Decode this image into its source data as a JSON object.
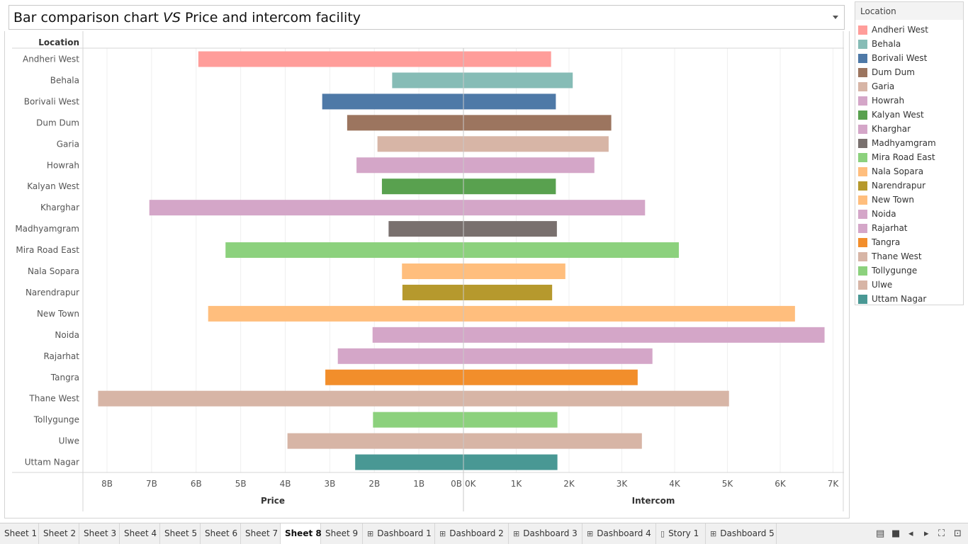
{
  "header": {
    "title_part1": "Bar comparison chart ",
    "title_vs": "VS",
    "title_part2": " Price and intercom facility"
  },
  "chart_data": {
    "type": "bar",
    "orientation": "horizontal",
    "title": "Bar comparison chart VS Price and intercom facility",
    "row_header": "Location",
    "categories": [
      "Andheri West",
      "Behala",
      "Borivali West",
      "Dum Dum",
      "Garia",
      "Howrah",
      "Kalyan West",
      "Kharghar",
      "Madhyamgram",
      "Mira Road East",
      "Nala Sopara",
      "Narendrapur",
      "New Town",
      "Noida",
      "Rajarhat",
      "Tangra",
      "Thane West",
      "Tollygunge",
      "Ulwe",
      "Uttam Nagar"
    ],
    "colors": [
      "#ff9d9a",
      "#86bcb6",
      "#4e79a7",
      "#9c755f",
      "#d7b5a6",
      "#d4a6c8",
      "#59a14f",
      "#d4a6c8",
      "#79706e",
      "#8cd17d",
      "#ffbe7d",
      "#b6992d",
      "#ffbe7d",
      "#d4a6c8",
      "#d4a6c8",
      "#f28e2b",
      "#d7b5a6",
      "#8cd17d",
      "#d7b5a6",
      "#499894"
    ],
    "series": [
      {
        "name": "Price",
        "values": [
          5.95,
          1.6,
          3.17,
          2.61,
          1.93,
          2.4,
          1.83,
          7.05,
          1.68,
          5.34,
          1.38,
          1.37,
          5.73,
          2.04,
          2.82,
          3.1,
          8.2,
          2.03,
          3.95,
          2.43
        ],
        "xlim": [
          8.5,
          0
        ],
        "ticks": [
          8,
          7,
          6,
          5,
          4,
          3,
          2,
          1,
          0
        ],
        "tick_labels": [
          "8B",
          "7B",
          "6B",
          "5B",
          "4B",
          "3B",
          "2B",
          "1B",
          "0B"
        ]
      },
      {
        "name": "Intercom",
        "values": [
          1.66,
          2.07,
          1.75,
          2.8,
          2.75,
          2.48,
          1.75,
          3.44,
          1.77,
          4.08,
          1.93,
          1.68,
          6.28,
          6.84,
          3.58,
          3.3,
          5.03,
          1.78,
          3.38,
          1.78
        ],
        "xlim": [
          0,
          7
        ],
        "ticks": [
          0,
          1,
          2,
          3,
          4,
          5,
          6,
          7
        ],
        "tick_labels": [
          "0K",
          "1K",
          "2K",
          "3K",
          "4K",
          "5K",
          "6K",
          "7K"
        ]
      }
    ],
    "grid": true
  },
  "legend": {
    "title": "Location",
    "items": [
      {
        "label": "Andheri West",
        "color": "#ff9d9a"
      },
      {
        "label": "Behala",
        "color": "#86bcb6"
      },
      {
        "label": "Borivali West",
        "color": "#4e79a7"
      },
      {
        "label": "Dum Dum",
        "color": "#9c755f"
      },
      {
        "label": "Garia",
        "color": "#d7b5a6"
      },
      {
        "label": "Howrah",
        "color": "#d4a6c8"
      },
      {
        "label": "Kalyan West",
        "color": "#59a14f"
      },
      {
        "label": "Kharghar",
        "color": "#d4a6c8"
      },
      {
        "label": "Madhyamgram",
        "color": "#79706e"
      },
      {
        "label": "Mira Road East",
        "color": "#8cd17d"
      },
      {
        "label": "Nala Sopara",
        "color": "#ffbe7d"
      },
      {
        "label": "Narendrapur",
        "color": "#b6992d"
      },
      {
        "label": "New Town",
        "color": "#ffbe7d"
      },
      {
        "label": "Noida",
        "color": "#d4a6c8"
      },
      {
        "label": "Rajarhat",
        "color": "#d4a6c8"
      },
      {
        "label": "Tangra",
        "color": "#f28e2b"
      },
      {
        "label": "Thane West",
        "color": "#d7b5a6"
      },
      {
        "label": "Tollygunge",
        "color": "#8cd17d"
      },
      {
        "label": "Ulwe",
        "color": "#d7b5a6"
      },
      {
        "label": "Uttam Nagar",
        "color": "#499894"
      }
    ]
  },
  "tabs": [
    {
      "label": "Sheet 1",
      "icon": ""
    },
    {
      "label": "Sheet 2",
      "icon": ""
    },
    {
      "label": "Sheet 3",
      "icon": ""
    },
    {
      "label": "Sheet 4",
      "icon": ""
    },
    {
      "label": "Sheet 5",
      "icon": ""
    },
    {
      "label": "Sheet 6",
      "icon": ""
    },
    {
      "label": "Sheet 7",
      "icon": ""
    },
    {
      "label": "Sheet 8",
      "icon": "",
      "active": true
    },
    {
      "label": "Sheet 9",
      "icon": ""
    },
    {
      "label": "Dashboard 1",
      "icon": "dashboard-icon"
    },
    {
      "label": "Dashboard 2",
      "icon": "dashboard-icon"
    },
    {
      "label": "Dashboard 3",
      "icon": "dashboard-icon"
    },
    {
      "label": "Dashboard 4",
      "icon": "dashboard-icon"
    },
    {
      "label": "Story 1",
      "icon": "story-icon"
    },
    {
      "label": "Dashboard 5",
      "icon": "dashboard-icon"
    }
  ],
  "tab_nav": [
    "film-strip-icon",
    "grid-view-icon",
    "prev-icon",
    "next-icon",
    "fullscreen-icon",
    "present-icon"
  ]
}
